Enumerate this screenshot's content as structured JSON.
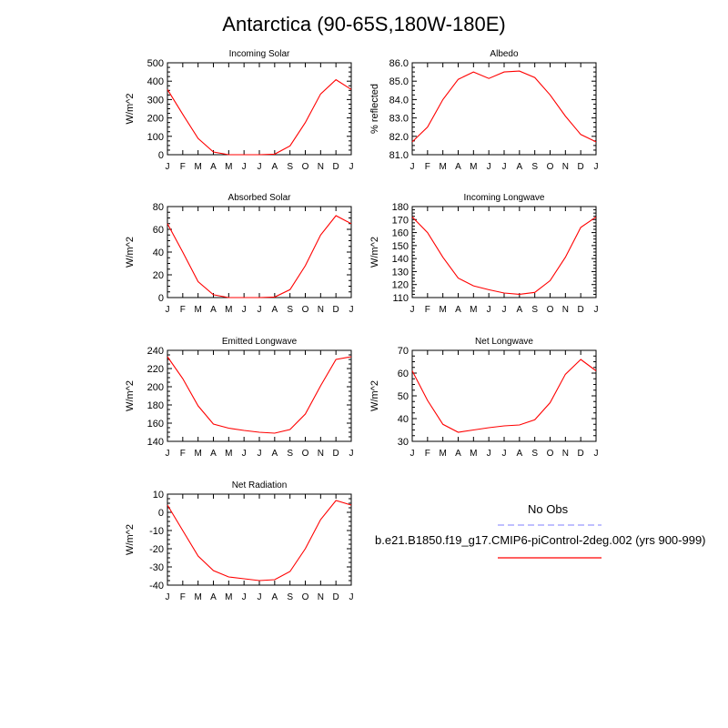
{
  "page": {
    "title": "Antarctica (90-65S,180W-180E)"
  },
  "months": [
    "J",
    "F",
    "M",
    "A",
    "M",
    "J",
    "J",
    "A",
    "S",
    "O",
    "N",
    "D",
    "J"
  ],
  "legend": {
    "obs_label": "No Obs",
    "model_label": "b.e21.B1850.f19_g17.CMIP6-piControl-2deg.002 (yrs 900-999)",
    "obs_color": "#9999ff",
    "model_color": "#ff0000"
  },
  "chart_data": [
    {
      "type": "line",
      "title": "Incoming Solar",
      "ylabel": "W/m^2",
      "ylim": [
        0,
        500
      ],
      "yticks": [
        0,
        100,
        200,
        300,
        400,
        500
      ],
      "ytick_labels": [
        "0",
        "100",
        "200",
        "300",
        "400",
        "500"
      ],
      "x": [
        "J",
        "F",
        "M",
        "A",
        "M",
        "J",
        "J",
        "A",
        "S",
        "O",
        "N",
        "D",
        "J"
      ],
      "series": [
        {
          "values": [
            355,
            220,
            88,
            15,
            0,
            0,
            0,
            3,
            48,
            175,
            330,
            408,
            355
          ]
        }
      ]
    },
    {
      "type": "line",
      "title": "Albedo",
      "ylabel": "% reflected",
      "ylim": [
        81.0,
        86.0
      ],
      "yticks": [
        81.0,
        82.0,
        83.0,
        84.0,
        85.0,
        86.0
      ],
      "ytick_labels": [
        "81.0",
        "82.0",
        "83.0",
        "84.0",
        "85.0",
        "86.0"
      ],
      "x": [
        "J",
        "F",
        "M",
        "A",
        "M",
        "J",
        "J",
        "A",
        "S",
        "O",
        "N",
        "D",
        "J"
      ],
      "series": [
        {
          "values": [
            81.7,
            82.5,
            84.0,
            85.1,
            85.5,
            85.15,
            85.5,
            85.55,
            85.2,
            84.25,
            83.1,
            82.1,
            81.7
          ]
        }
      ]
    },
    {
      "type": "line",
      "title": "Absorbed Solar",
      "ylabel": "W/m^2",
      "ylim": [
        0,
        80
      ],
      "yticks": [
        0,
        20,
        40,
        60,
        80
      ],
      "ytick_labels": [
        "0",
        "20",
        "40",
        "60",
        "80"
      ],
      "x": [
        "J",
        "F",
        "M",
        "A",
        "M",
        "J",
        "J",
        "A",
        "S",
        "O",
        "N",
        "D",
        "J"
      ],
      "series": [
        {
          "values": [
            65,
            40,
            14,
            2.5,
            0,
            0,
            0,
            0.5,
            7,
            28,
            55,
            72,
            65
          ]
        }
      ]
    },
    {
      "type": "line",
      "title": "Incoming Longwave",
      "ylabel": "W/m^2",
      "ylim": [
        110,
        180
      ],
      "yticks": [
        110,
        120,
        130,
        140,
        150,
        160,
        170,
        180
      ],
      "ytick_labels": [
        "110",
        "120",
        "130",
        "140",
        "150",
        "160",
        "170",
        "180"
      ],
      "x": [
        "J",
        "F",
        "M",
        "A",
        "M",
        "J",
        "J",
        "A",
        "S",
        "O",
        "N",
        "D",
        "J"
      ],
      "series": [
        {
          "values": [
            172,
            160,
            141,
            125,
            119,
            116,
            113.5,
            112.5,
            114,
            123,
            141,
            164,
            172
          ]
        }
      ]
    },
    {
      "type": "line",
      "title": "Emitted Longwave",
      "ylabel": "W/m^2",
      "ylim": [
        140,
        240
      ],
      "yticks": [
        140,
        160,
        180,
        200,
        220,
        240
      ],
      "ytick_labels": [
        "140",
        "160",
        "180",
        "200",
        "220",
        "240"
      ],
      "x": [
        "J",
        "F",
        "M",
        "A",
        "M",
        "J",
        "J",
        "A",
        "S",
        "O",
        "N",
        "D",
        "J"
      ],
      "series": [
        {
          "values": [
            233,
            209,
            179,
            159,
            154.5,
            152,
            150,
            149,
            153,
            170,
            201,
            230,
            233
          ]
        }
      ]
    },
    {
      "type": "line",
      "title": "Net Longwave",
      "ylabel": "W/m^2",
      "ylim": [
        30,
        70
      ],
      "yticks": [
        30,
        40,
        50,
        60,
        70
      ],
      "ytick_labels": [
        "30",
        "40",
        "50",
        "60",
        "70"
      ],
      "x": [
        "J",
        "F",
        "M",
        "A",
        "M",
        "J",
        "J",
        "A",
        "S",
        "O",
        "N",
        "D",
        "J"
      ],
      "series": [
        {
          "values": [
            61,
            48,
            37.5,
            34,
            35,
            36,
            36.8,
            37.2,
            39.5,
            47,
            59.5,
            66,
            61
          ]
        }
      ]
    },
    {
      "type": "line",
      "title": "Net Radiation",
      "ylabel": "W/m^2",
      "ylim": [
        -40,
        10
      ],
      "yticks": [
        -40,
        -30,
        -20,
        -10,
        0,
        10
      ],
      "ytick_labels": [
        "-40",
        "-30",
        "-20",
        "-10",
        "0",
        "10"
      ],
      "x": [
        "J",
        "F",
        "M",
        "A",
        "M",
        "J",
        "J",
        "A",
        "S",
        "O",
        "N",
        "D",
        "J"
      ],
      "series": [
        {
          "values": [
            4,
            -10,
            -24,
            -32,
            -35.5,
            -36.5,
            -37.5,
            -37,
            -32.5,
            -20,
            -4,
            6.5,
            4
          ]
        }
      ]
    }
  ]
}
